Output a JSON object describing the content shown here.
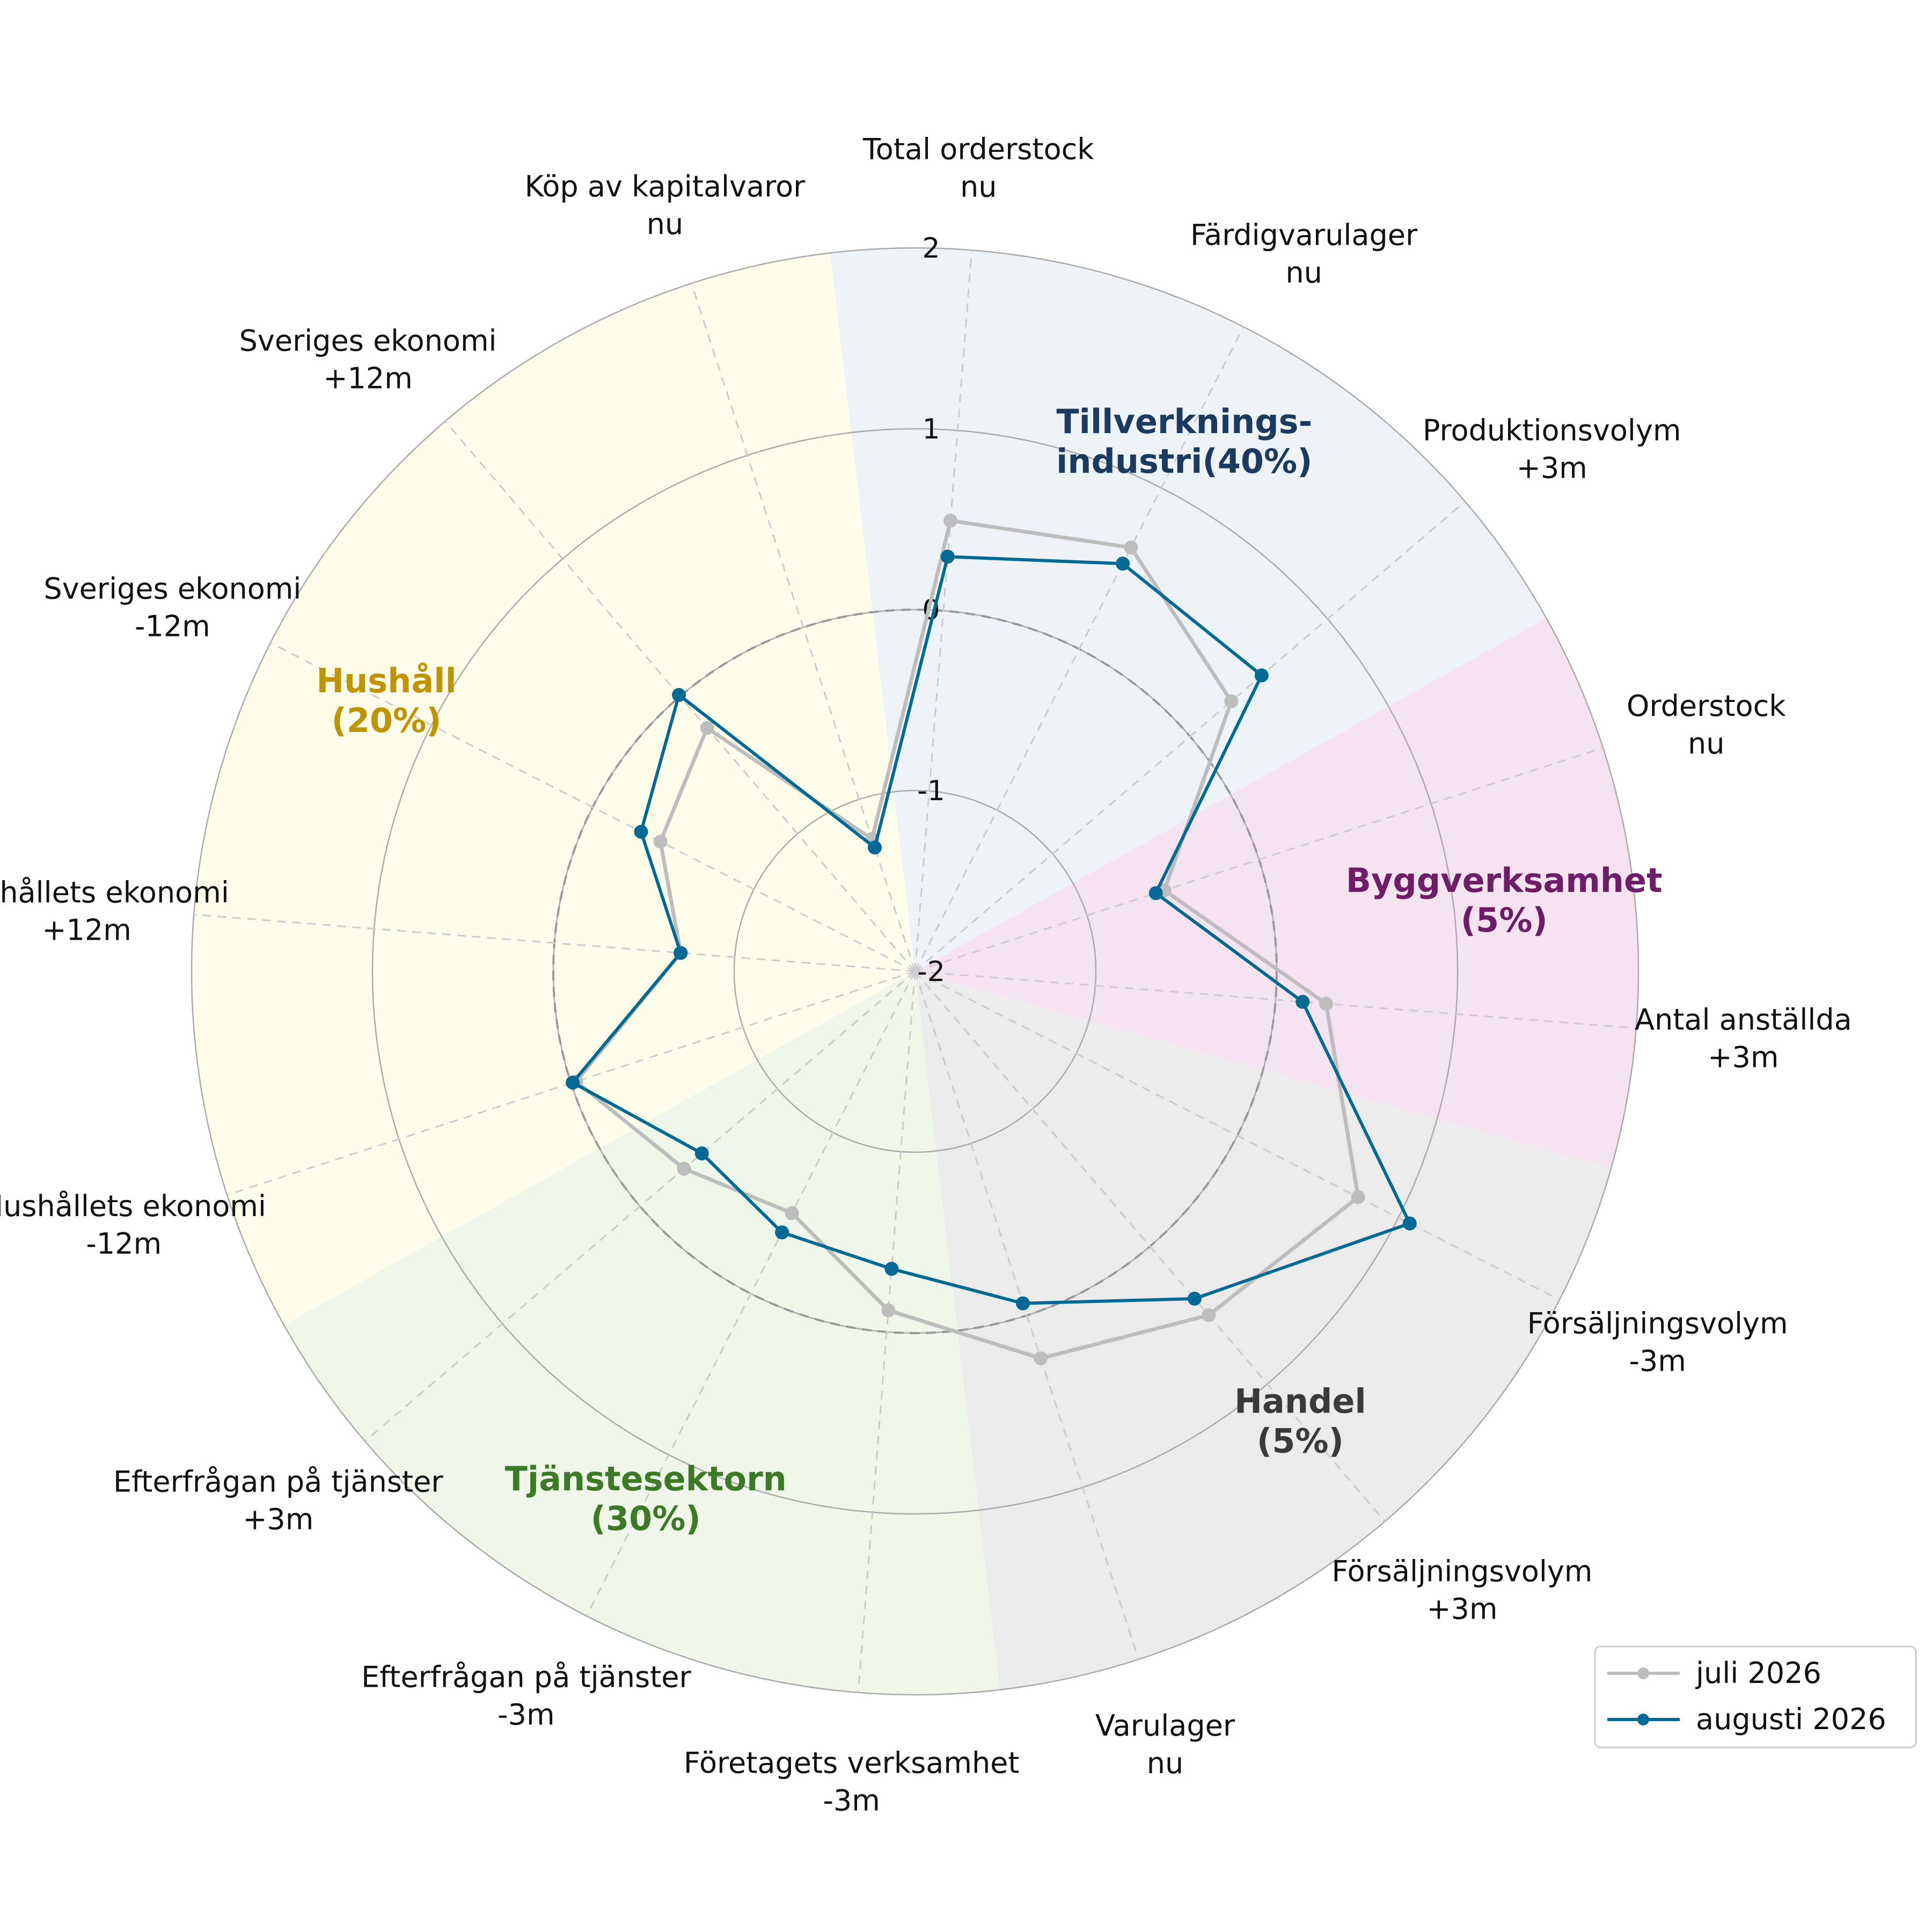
{
  "chart_data": {
    "type": "radar",
    "title": "",
    "rlim": [
      -2,
      2
    ],
    "r_ticks": [
      "-2",
      "-1",
      "0",
      "1",
      "2"
    ],
    "reference_value": 0,
    "grid": true,
    "legend_position": "bottom-right",
    "axes": [
      {
        "line1": "Total orderstock",
        "line2": "nu"
      },
      {
        "line1": "Färdigvarulager",
        "line2": "nu"
      },
      {
        "line1": "Produktionsvolym",
        "line2": "+3m"
      },
      {
        "line1": "Orderstock",
        "line2": "nu"
      },
      {
        "line1": "Antal anställda",
        "line2": "+3m"
      },
      {
        "line1": "Försäljningsvolym",
        "line2": "-3m"
      },
      {
        "line1": "Försäljningsvolym",
        "line2": "+3m"
      },
      {
        "line1": "Varulager",
        "line2": "nu"
      },
      {
        "line1": "Företagets verksamhet",
        "line2": "-3m"
      },
      {
        "line1": "Efterfrågan på tjänster",
        "line2": "-3m"
      },
      {
        "line1": "Efterfrågan på tjänster",
        "line2": "+3m"
      },
      {
        "line1": "Hushållets ekonomi",
        "line2": "-12m"
      },
      {
        "line1": "Hushållets ekonomi",
        "line2": "+12m"
      },
      {
        "line1": "Sveriges ekonomi",
        "line2": "-12m"
      },
      {
        "line1": "Sveriges ekonomi",
        "line2": "+12m"
      },
      {
        "line1": "Köp av kapitalvaror",
        "line2": "nu"
      }
    ],
    "sectors": [
      {
        "line1": "Tillverknings-",
        "line2": "industri(40%)",
        "color": "#1a3a5f",
        "fill": "#eef3f8",
        "from_axis": 0,
        "to_axis": 3
      },
      {
        "line1": "Byggverksamhet",
        "line2": "(5%)",
        "color": "#6e1e66",
        "fill": "#f6e3f2",
        "from_axis": 3,
        "to_axis": 5
      },
      {
        "line1": "Handel",
        "line2": "(5%)",
        "color": "#3a3a3a",
        "fill": "#ebebeb",
        "from_axis": 5,
        "to_axis": 8
      },
      {
        "line1": "Tjänstesektorn",
        "line2": "(30%)",
        "color": "#3d7a25",
        "fill": "#eef7ea",
        "from_axis": 8,
        "to_axis": 11
      },
      {
        "line1": "Hushåll",
        "line2": "(20%)",
        "color": "#c09300",
        "fill": "#fffeea",
        "from_axis": 11,
        "to_axis": 16
      }
    ],
    "series": [
      {
        "name": "juli 2026",
        "color": "#bdbdbd",
        "values": [
          0.5,
          0.63,
          0.3,
          -0.55,
          0.28,
          0.75,
          0.5,
          0.25,
          -0.12,
          -0.5,
          -0.32,
          -0.03,
          -0.7,
          -0.42,
          -0.23,
          -1.23
        ]
      },
      {
        "name": "augusti 2026",
        "color": "#006994",
        "values": [
          0.3,
          0.53,
          0.52,
          -0.6,
          0.15,
          1.07,
          0.38,
          -0.07,
          -0.35,
          -0.38,
          -0.45,
          -0.01,
          -0.7,
          -0.3,
          0.01,
          -1.28
        ]
      }
    ]
  }
}
